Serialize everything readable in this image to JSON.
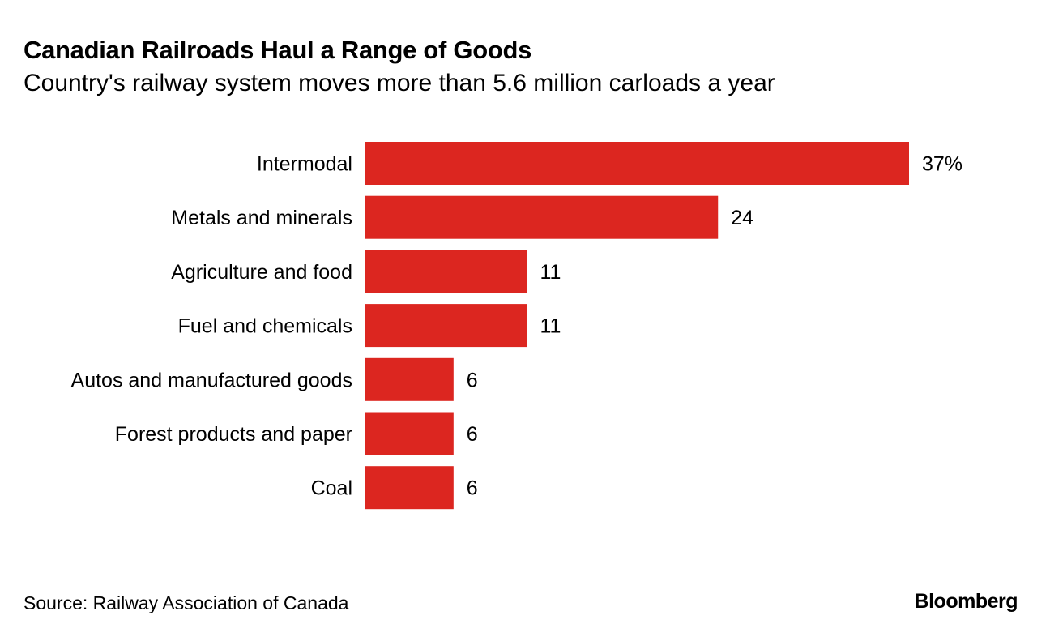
{
  "title": "Canadian Railroads Haul a Range of Goods",
  "subtitle": "Country's railway system moves more than 5.6 million carloads a year",
  "source": "Source: Railway Association of Canada",
  "logo": "Bloomberg",
  "chart_data": {
    "type": "bar",
    "orientation": "horizontal",
    "title": "Canadian Railroads Haul a Range of Goods",
    "subtitle": "Country's railway system moves more than 5.6 million carloads a year",
    "categories": [
      "Intermodal",
      "Metals and minerals",
      "Agriculture and food",
      "Fuel and chemicals",
      "Autos and manufactured goods",
      "Forest products and paper",
      "Coal"
    ],
    "values": [
      37,
      24,
      11,
      11,
      6,
      6,
      6
    ],
    "value_labels": [
      "37%",
      "24",
      "11",
      "11",
      "6",
      "6",
      "6"
    ],
    "unit": "%",
    "xlim": [
      0,
      37
    ],
    "grid": false,
    "bar_color": "#dc2620"
  }
}
